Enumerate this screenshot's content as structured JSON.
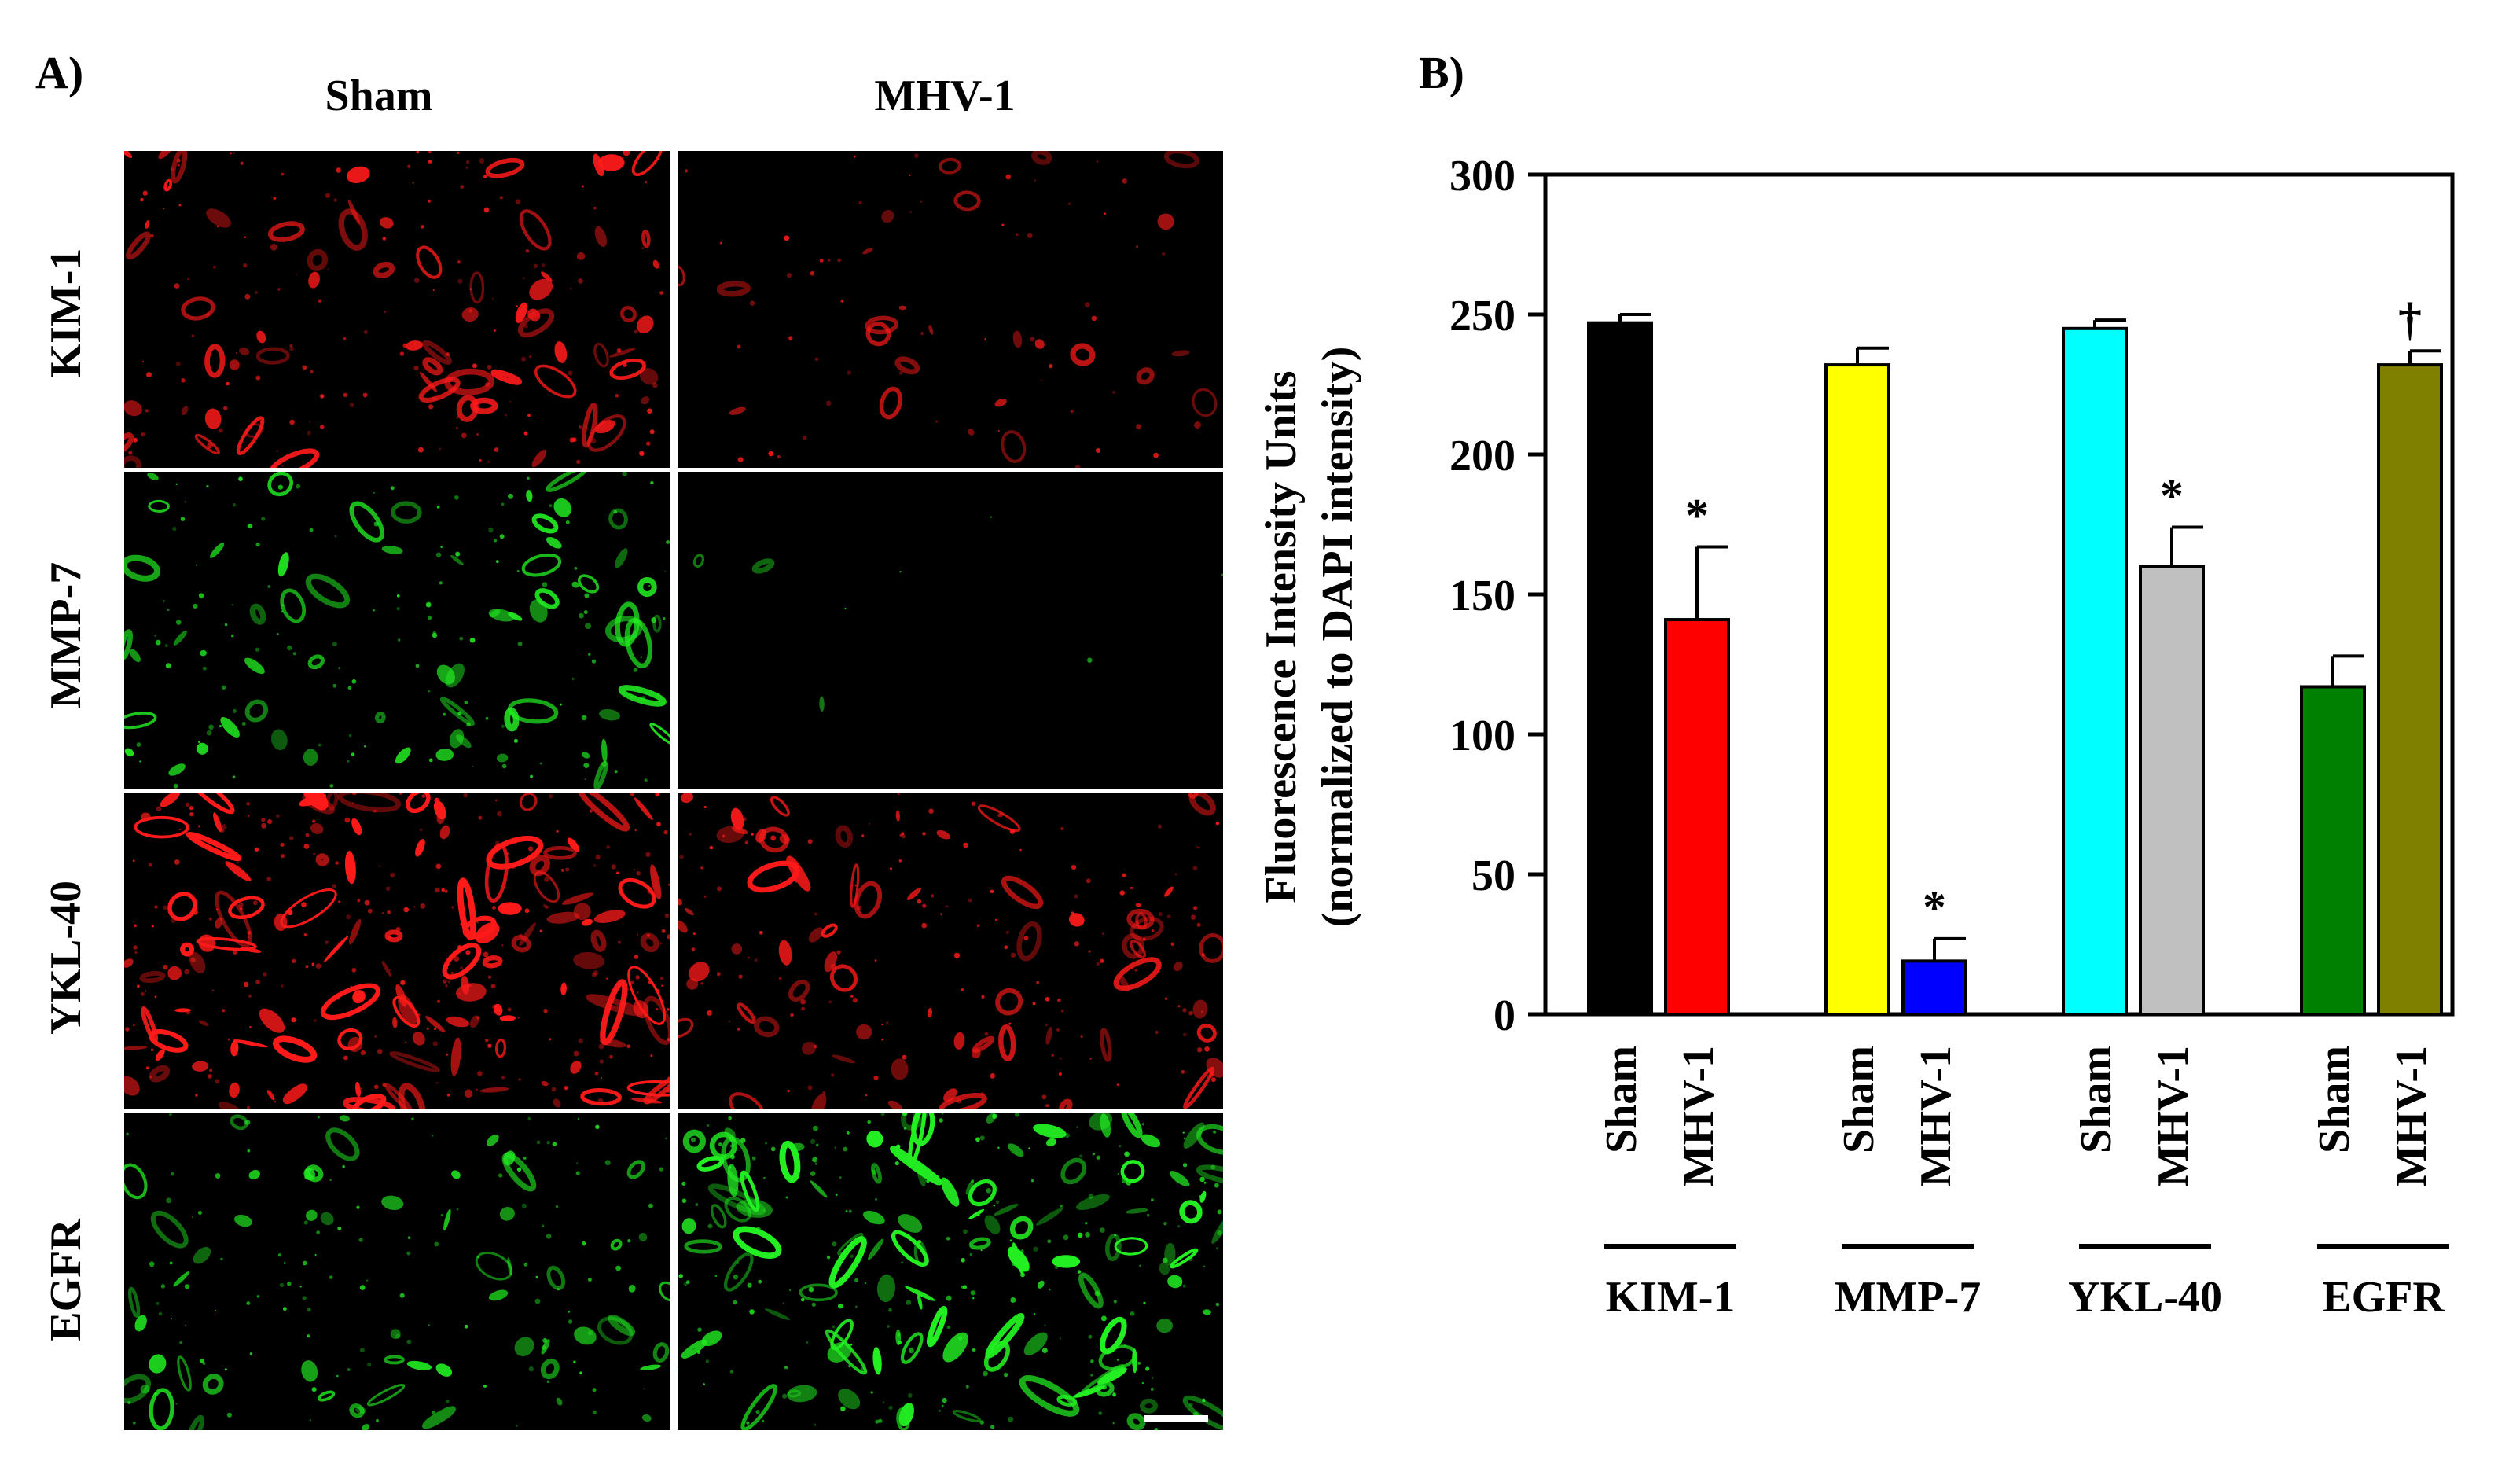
{
  "panel_a": {
    "label": "A)",
    "columns": [
      "Sham",
      "MHV-1"
    ],
    "rows": [
      {
        "label": "KIM-1",
        "stain_color": "#ff1a1a",
        "intensity": {
          "Sham": 0.55,
          "MHV-1": 0.2
        }
      },
      {
        "label": "MMP-7",
        "stain_color": "#22ee22",
        "intensity": {
          "Sham": 0.5,
          "MHV-1": 0.02
        }
      },
      {
        "label": "YKL-40",
        "stain_color": "#ff1a1a",
        "intensity": {
          "Sham": 0.95,
          "MHV-1": 0.55
        }
      },
      {
        "label": "EGFR",
        "stain_color": "#22ee22",
        "intensity": {
          "Sham": 0.45,
          "MHV-1": 0.85
        }
      }
    ]
  },
  "panel_b": {
    "label": "B)"
  },
  "chart_data": {
    "type": "bar",
    "ylabel_line1": "Fluorescence Intensity Units",
    "ylabel_line2": "(normalized to DAPI intensity)",
    "ylim": [
      0,
      300
    ],
    "yticks": [
      0,
      50,
      100,
      150,
      200,
      250,
      300
    ],
    "grid": false,
    "groups": [
      {
        "name": "KIM-1",
        "bars": [
          {
            "label": "Sham",
            "value": 247,
            "error": 3,
            "color": "#000000"
          },
          {
            "label": "MHV-1",
            "value": 141,
            "error": 26,
            "color": "#ff0000",
            "annotation": "*"
          }
        ]
      },
      {
        "name": "MMP-7",
        "bars": [
          {
            "label": "Sham",
            "value": 232,
            "error": 6,
            "color": "#ffff00"
          },
          {
            "label": "MHV-1",
            "value": 19,
            "error": 8,
            "color": "#0000ff",
            "annotation": "*"
          }
        ]
      },
      {
        "name": "YKL-40",
        "bars": [
          {
            "label": "Sham",
            "value": 245,
            "error": 3,
            "color": "#00ffff"
          },
          {
            "label": "MHV-1",
            "value": 160,
            "error": 14,
            "color": "#c0c0c0",
            "annotation": "*"
          }
        ]
      },
      {
        "name": "EGFR",
        "bars": [
          {
            "label": "Sham",
            "value": 117,
            "error": 11,
            "color": "#008000"
          },
          {
            "label": "MHV-1",
            "value": 232,
            "error": 5,
            "color": "#808000",
            "annotation": "†"
          }
        ]
      }
    ]
  }
}
